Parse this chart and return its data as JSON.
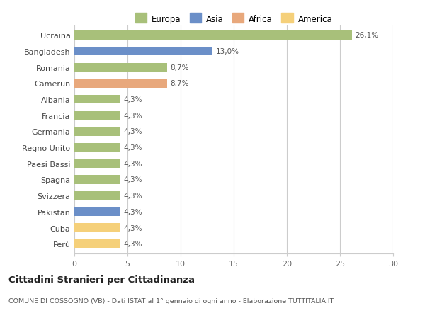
{
  "countries": [
    "Ucraina",
    "Bangladesh",
    "Romania",
    "Camerun",
    "Albania",
    "Francia",
    "Germania",
    "Regno Unito",
    "Paesi Bassi",
    "Spagna",
    "Svizzera",
    "Pakistan",
    "Cuba",
    "Perù"
  ],
  "values": [
    26.1,
    13.0,
    8.7,
    8.7,
    4.3,
    4.3,
    4.3,
    4.3,
    4.3,
    4.3,
    4.3,
    4.3,
    4.3,
    4.3
  ],
  "labels": [
    "26,1%",
    "13,0%",
    "8,7%",
    "8,7%",
    "4,3%",
    "4,3%",
    "4,3%",
    "4,3%",
    "4,3%",
    "4,3%",
    "4,3%",
    "4,3%",
    "4,3%",
    "4,3%"
  ],
  "colors": [
    "#a8c07a",
    "#6b8fc8",
    "#a8c07a",
    "#e8a87c",
    "#a8c07a",
    "#a8c07a",
    "#a8c07a",
    "#a8c07a",
    "#a8c07a",
    "#a8c07a",
    "#a8c07a",
    "#6b8fc8",
    "#f5d07a",
    "#f5d07a"
  ],
  "continent_colors": {
    "Europa": "#a8c07a",
    "Asia": "#6b8fc8",
    "Africa": "#e8a87c",
    "America": "#f5d07a"
  },
  "xlim": [
    0,
    30
  ],
  "xticks": [
    0,
    5,
    10,
    15,
    20,
    25,
    30
  ],
  "title": "Cittadini Stranieri per Cittadinanza",
  "subtitle": "COMUNE DI COSSOGNO (VB) - Dati ISTAT al 1° gennaio di ogni anno - Elaborazione TUTTITALIA.IT",
  "background_color": "#ffffff",
  "bar_height": 0.55,
  "grid_color": "#cccccc"
}
